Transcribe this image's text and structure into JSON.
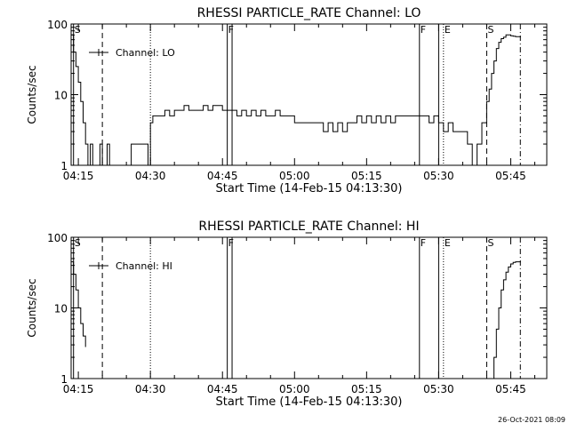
{
  "timestamp": "26-Oct-2021 08:09",
  "chart_data": [
    {
      "type": "line",
      "title": "RHESSI PARTICLE_RATE Channel: LO",
      "xlabel": "Start Time (14-Feb-15 04:13:30)",
      "ylabel": "Counts/sec",
      "y_scale": "log",
      "ylim": [
        1,
        100
      ],
      "xlim": [
        "04:13:30",
        "05:52:30"
      ],
      "x_ticks": [
        "04:15",
        "04:30",
        "04:45",
        "05:00",
        "05:15",
        "05:30",
        "05:45"
      ],
      "y_ticks": [
        "1",
        "10",
        "100"
      ],
      "legend": {
        "label": "Channel: LO",
        "position": "top-left"
      },
      "markers": [
        {
          "label": "S",
          "time": "04:14",
          "style": "solid"
        },
        {
          "label": "",
          "time": "04:20",
          "style": "dashed"
        },
        {
          "label": "",
          "time": "04:30",
          "style": "dotted"
        },
        {
          "label": "F",
          "time": "04:46",
          "style": "solid"
        },
        {
          "label": "",
          "time": "04:47",
          "style": "solid"
        },
        {
          "label": "F",
          "time": "05:26",
          "style": "solid"
        },
        {
          "label": "",
          "time": "05:30",
          "style": "solid"
        },
        {
          "label": "E",
          "time": "05:31",
          "style": "dotted"
        },
        {
          "label": "S",
          "time": "05:40",
          "style": "dashed"
        },
        {
          "label": "",
          "time": "05:47",
          "style": "dashdot"
        }
      ],
      "series": [
        {
          "x": [
            "04:13:30",
            "04:14:00",
            "04:14:30",
            "04:15:00",
            "04:15:30",
            "04:16:00",
            "04:16:30",
            "04:17:00",
            "04:17:30",
            "04:18:00",
            "04:18:30",
            "04:19:00",
            "04:19:30",
            "04:20:00",
            "04:20:30",
            "04:21:00",
            "04:21:30",
            "04:22:00",
            "04:22:30",
            "04:23:00",
            "04:23:30",
            "04:24:00",
            "04:24:30",
            "04:25:00",
            "04:25:30",
            "04:26:00",
            "04:26:30",
            "04:27:00",
            "04:27:30",
            "04:28:00",
            "04:28:30",
            "04:29:00",
            "04:29:30",
            "04:30:00",
            "04:30:30",
            "04:31:00",
            "04:32:00",
            "04:33:00",
            "04:34:00",
            "04:35:00",
            "04:36:00",
            "04:37:00",
            "04:38:00",
            "04:39:00",
            "04:40:00",
            "04:41:00",
            "04:42:00",
            "04:43:00",
            "04:44:00",
            "04:45:00",
            "04:46:00",
            "04:47:00",
            "04:48:00",
            "04:49:00",
            "04:50:00",
            "04:51:00",
            "04:52:00",
            "04:53:00",
            "04:54:00",
            "04:55:00",
            "04:56:00",
            "04:57:00",
            "04:58:00",
            "04:59:00",
            "05:00:00",
            "05:01:00",
            "05:02:00",
            "05:03:00",
            "05:04:00",
            "05:05:00",
            "05:06:00",
            "05:07:00",
            "05:08:00",
            "05:09:00",
            "05:10:00",
            "05:11:00",
            "05:12:00",
            "05:13:00",
            "05:14:00",
            "05:15:00",
            "05:16:00",
            "05:17:00",
            "05:18:00",
            "05:19:00",
            "05:20:00",
            "05:21:00",
            "05:22:00",
            "05:23:00",
            "05:24:00",
            "05:25:00",
            "05:26:00",
            "05:27:00",
            "05:28:00",
            "05:29:00",
            "05:30:00",
            "05:31:00",
            "05:32:00",
            "05:33:00",
            "05:34:00",
            "05:35:00",
            "05:36:00",
            "05:37:00",
            "05:38:00",
            "05:39:00",
            "05:40:00",
            "05:40:30",
            "05:41:00",
            "05:41:30",
            "05:42:00",
            "05:42:30",
            "05:43:00",
            "05:43:30",
            "05:44:00",
            "05:44:30",
            "05:45:00",
            "05:45:30",
            "05:46:00",
            "05:46:30",
            "05:47:00"
          ],
          "y": [
            70,
            40,
            25,
            15,
            8,
            4,
            2,
            1,
            2,
            1,
            1,
            1,
            2,
            1,
            1,
            2,
            1,
            1,
            1,
            1,
            1,
            1,
            1,
            1,
            1,
            2,
            2,
            2,
            2,
            2,
            2,
            2,
            1,
            4,
            5,
            5,
            5,
            6,
            5,
            6,
            6,
            7,
            6,
            6,
            6,
            7,
            6,
            7,
            7,
            6,
            6,
            6,
            5,
            6,
            5,
            6,
            5,
            6,
            5,
            5,
            6,
            5,
            5,
            5,
            4,
            4,
            4,
            4,
            4,
            4,
            3,
            4,
            3,
            4,
            3,
            4,
            4,
            5,
            4,
            5,
            4,
            5,
            4,
            5,
            4,
            5,
            5,
            5,
            5,
            5,
            5,
            5,
            4,
            5,
            4,
            3,
            4,
            3,
            3,
            3,
            2,
            1,
            2,
            4,
            8,
            12,
            20,
            30,
            45,
            55,
            62,
            65,
            70,
            70,
            68,
            67,
            66,
            66,
            65
          ]
        }
      ]
    },
    {
      "type": "line",
      "title": "RHESSI PARTICLE_RATE Channel: HI",
      "xlabel": "Start Time (14-Feb-15 04:13:30)",
      "ylabel": "Counts/sec",
      "y_scale": "log",
      "ylim": [
        1,
        100
      ],
      "xlim": [
        "04:13:30",
        "05:52:30"
      ],
      "x_ticks": [
        "04:15",
        "04:30",
        "04:45",
        "05:00",
        "05:15",
        "05:30",
        "05:45"
      ],
      "y_ticks": [
        "1",
        "10",
        "100"
      ],
      "legend": {
        "label": "Channel: HI",
        "position": "top-left"
      },
      "markers": [
        {
          "label": "S",
          "time": "04:14",
          "style": "solid"
        },
        {
          "label": "",
          "time": "04:20",
          "style": "dashed"
        },
        {
          "label": "",
          "time": "04:30",
          "style": "dotted"
        },
        {
          "label": "F",
          "time": "04:46",
          "style": "solid"
        },
        {
          "label": "",
          "time": "04:47",
          "style": "solid"
        },
        {
          "label": "F",
          "time": "05:26",
          "style": "solid"
        },
        {
          "label": "",
          "time": "05:30",
          "style": "solid"
        },
        {
          "label": "E",
          "time": "05:31",
          "style": "dotted"
        },
        {
          "label": "S",
          "time": "05:40",
          "style": "dashed"
        },
        {
          "label": "",
          "time": "05:47",
          "style": "dashdot"
        }
      ],
      "series": [
        {
          "x": [
            "04:13:30",
            "04:14:00",
            "04:14:30",
            "04:15:00",
            "04:15:30",
            "04:16:00",
            "04:16:30",
            "05:41:00",
            "05:41:30",
            "05:42:00",
            "05:42:30",
            "05:43:00",
            "05:43:30",
            "05:44:00",
            "05:44:30",
            "05:45:00",
            "05:45:30",
            "05:46:00",
            "05:46:30",
            "05:47:00"
          ],
          "y": [
            45,
            30,
            18,
            10,
            6,
            4,
            2.8,
            1,
            2,
            5,
            10,
            18,
            25,
            32,
            38,
            42,
            44,
            45,
            45,
            44
          ]
        }
      ]
    }
  ]
}
